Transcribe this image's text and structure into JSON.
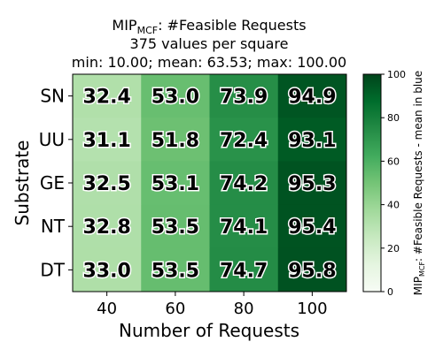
{
  "chart_data": {
    "type": "heatmap",
    "title": {
      "prefix": "MIP",
      "subscript": "MCF",
      "suffix": ": #Feasible Requests"
    },
    "subtitle_lines": [
      "375 values per square",
      "min: 10.00; mean: 63.53; max: 100.00"
    ],
    "xlabel": "Number of Requests",
    "ylabel": "Substrate",
    "x_categories": [
      "40",
      "60",
      "80",
      "100"
    ],
    "y_categories": [
      "SN",
      "UU",
      "GE",
      "NT",
      "DT"
    ],
    "values": [
      [
        32.4,
        53.0,
        73.9,
        94.9
      ],
      [
        31.1,
        51.8,
        72.4,
        93.1
      ],
      [
        32.5,
        53.1,
        74.2,
        95.3
      ],
      [
        32.8,
        53.5,
        74.1,
        95.4
      ],
      [
        33.0,
        53.5,
        74.7,
        95.8
      ]
    ],
    "value_labels": [
      [
        "32.4",
        "53.0",
        "73.9",
        "94.9"
      ],
      [
        "31.1",
        "51.8",
        "72.4",
        "93.1"
      ],
      [
        "32.5",
        "53.1",
        "74.2",
        "95.3"
      ],
      [
        "32.8",
        "53.5",
        "74.1",
        "95.4"
      ],
      [
        "33.0",
        "53.5",
        "74.7",
        "95.8"
      ]
    ],
    "colorbar": {
      "range": [
        0,
        100
      ],
      "ticks": [
        "0",
        "20",
        "40",
        "60",
        "80",
        "100"
      ],
      "label": {
        "prefix": "MIP",
        "subscript": "MCF",
        "suffix": ": #Feasible Requests - mean in blue"
      },
      "colormap": "Greens"
    }
  }
}
